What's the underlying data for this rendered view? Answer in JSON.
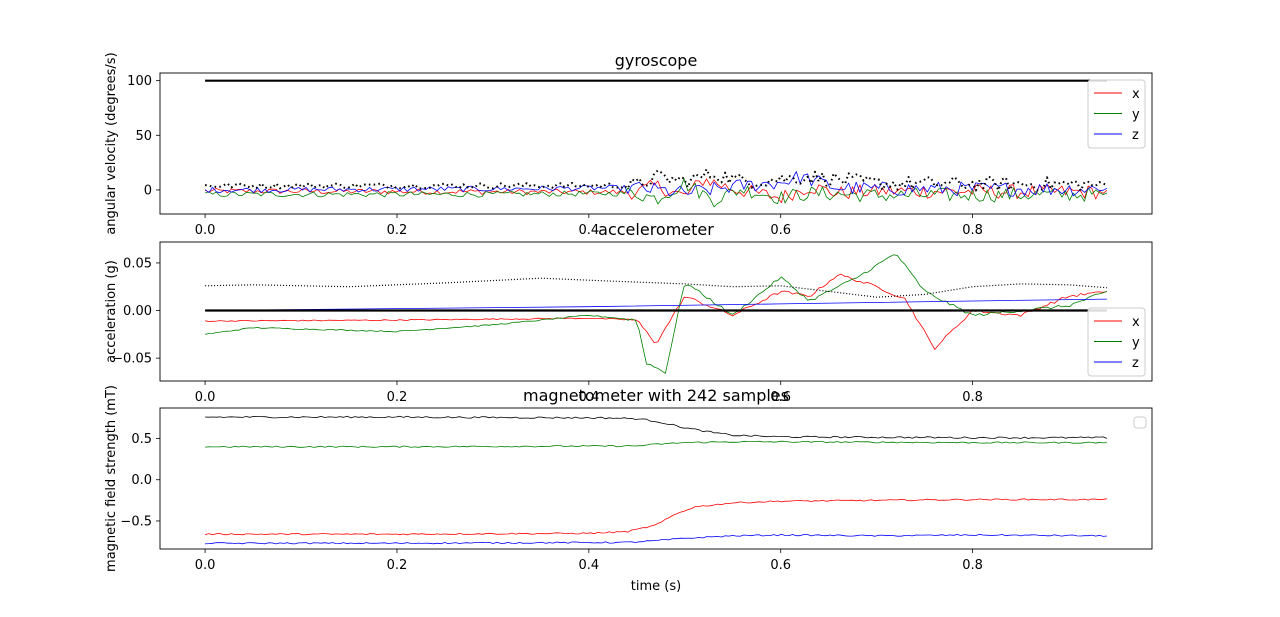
{
  "chart_data": [
    {
      "type": "line",
      "title": "gyroscope",
      "xlabel": "",
      "ylabel": "angular velocity (degrees/s)",
      "xlim": [
        -0.047,
        0.987
      ],
      "ylim": [
        -22,
        107
      ],
      "xticks": [
        0.0,
        0.2,
        0.4,
        0.6,
        0.8
      ],
      "xtick_labels": [
        "0.0",
        "0.2",
        "0.4",
        "0.6",
        "0.8"
      ],
      "yticks": [
        0,
        50,
        100
      ],
      "ytick_labels": [
        "0",
        "50",
        "100"
      ],
      "legend": [
        "x",
        "y",
        "z"
      ],
      "legend_position": "upper right",
      "series": [
        {
          "name": "x",
          "color": "#ff0000",
          "noisy": true,
          "x": [
            0,
            0.45,
            0.47,
            0.5,
            0.52,
            0.55,
            0.6,
            0.63,
            0.66,
            0.7,
            0.94
          ],
          "values": [
            -1,
            -2,
            4,
            -6,
            10,
            1,
            -7,
            3,
            -3,
            -1,
            -2
          ]
        },
        {
          "name": "y",
          "color": "#008000",
          "noisy": true,
          "x": [
            0,
            0.3,
            0.45,
            0.47,
            0.5,
            0.53,
            0.56,
            0.6,
            0.63,
            0.7,
            0.94
          ],
          "values": [
            -4,
            -4,
            -3,
            -8,
            6,
            -9,
            1,
            -7,
            -3,
            -5,
            -4
          ]
        },
        {
          "name": "z",
          "color": "#0000ff",
          "noisy": true,
          "x": [
            0,
            0.3,
            0.45,
            0.5,
            0.55,
            0.6,
            0.62,
            0.66,
            0.7,
            0.94
          ],
          "values": [
            0,
            1,
            2,
            -3,
            3,
            7,
            12,
            2,
            1,
            1
          ]
        },
        {
          "name": "",
          "color": "#000000",
          "style": "dotted",
          "noisy": true,
          "x": [
            0,
            0.3,
            0.45,
            0.47,
            0.5,
            0.53,
            0.56,
            0.6,
            0.63,
            0.7,
            0.94
          ],
          "values": [
            4,
            4,
            4,
            12,
            8,
            15,
            8,
            10,
            12,
            6,
            5
          ]
        },
        {
          "name": "",
          "color": "#000000",
          "style": "thick",
          "x": [
            0,
            0.94
          ],
          "values": [
            100,
            100
          ]
        }
      ]
    },
    {
      "type": "line",
      "title": "accelerometer",
      "xlabel": "",
      "ylabel": "acceleration (g)",
      "xlim": [
        -0.047,
        0.987
      ],
      "ylim": [
        -0.074,
        0.072
      ],
      "xticks": [
        0.0,
        0.2,
        0.4,
        0.6,
        0.8
      ],
      "xtick_labels": [
        "0.0",
        "0.2",
        "0.4",
        "0.6",
        "0.8"
      ],
      "yticks": [
        -0.05,
        0.0,
        0.05
      ],
      "ytick_labels": [
        "−0.05",
        "0.00",
        "0.05"
      ],
      "legend": [
        "x",
        "y",
        "z"
      ],
      "legend_position": "lower right",
      "series": [
        {
          "name": "x",
          "color": "#ff0000",
          "noisy": true,
          "x": [
            0,
            0.2,
            0.4,
            0.45,
            0.47,
            0.5,
            0.55,
            0.6,
            0.63,
            0.66,
            0.7,
            0.73,
            0.76,
            0.8,
            0.85,
            0.9,
            0.94
          ],
          "values": [
            -0.011,
            -0.01,
            -0.008,
            -0.01,
            -0.035,
            0.015,
            -0.005,
            0.02,
            0.015,
            0.038,
            0.025,
            0.012,
            -0.04,
            0.0,
            -0.005,
            0.015,
            0.02
          ]
        },
        {
          "name": "y",
          "color": "#008000",
          "noisy": true,
          "x": [
            0,
            0.05,
            0.2,
            0.3,
            0.4,
            0.45,
            0.46,
            0.48,
            0.5,
            0.55,
            0.6,
            0.63,
            0.68,
            0.72,
            0.75,
            0.8,
            0.85,
            0.9,
            0.94
          ],
          "values": [
            -0.025,
            -0.018,
            -0.022,
            -0.015,
            -0.005,
            -0.01,
            -0.055,
            -0.065,
            0.03,
            -0.005,
            0.035,
            0.01,
            0.035,
            0.06,
            0.02,
            -0.005,
            0.0,
            0.005,
            0.02
          ]
        },
        {
          "name": "z",
          "color": "#0000ff",
          "x": [
            0,
            0.2,
            0.4,
            0.6,
            0.8,
            0.94
          ],
          "values": [
            0.0,
            0.002,
            0.004,
            0.007,
            0.01,
            0.012
          ]
        },
        {
          "name": "",
          "color": "#000000",
          "style": "dotted-fine",
          "x": [
            0,
            0.05,
            0.15,
            0.25,
            0.35,
            0.42,
            0.5,
            0.55,
            0.6,
            0.66,
            0.7,
            0.75,
            0.8,
            0.85,
            0.9,
            0.94
          ],
          "values": [
            0.026,
            0.027,
            0.025,
            0.029,
            0.034,
            0.031,
            0.028,
            0.025,
            0.026,
            0.019,
            0.014,
            0.017,
            0.025,
            0.028,
            0.027,
            0.024
          ]
        },
        {
          "name": "",
          "color": "#000000",
          "style": "thick",
          "x": [
            0,
            0.94
          ],
          "values": [
            0.0,
            0.0
          ]
        }
      ]
    },
    {
      "type": "line",
      "title": "magnetometer with 242 samples",
      "xlabel": "time (s)",
      "ylabel": "magnetic field strength (mT)",
      "xlim": [
        -0.047,
        0.987
      ],
      "ylim": [
        -0.84,
        0.87
      ],
      "xticks": [
        0.0,
        0.2,
        0.4,
        0.6,
        0.8
      ],
      "xtick_labels": [
        "0.0",
        "0.2",
        "0.4",
        "0.6",
        "0.8"
      ],
      "yticks": [
        -0.5,
        0.0,
        0.5
      ],
      "ytick_labels": [
        "−0.5",
        "0.0",
        "0.5"
      ],
      "legend": [],
      "legend_position": "upper right",
      "series": [
        {
          "name": "",
          "color": "#000000",
          "noisy": true,
          "noise": 0.006,
          "x": [
            0,
            0.2,
            0.42,
            0.45,
            0.47,
            0.5,
            0.53,
            0.55,
            0.6,
            0.8,
            0.94
          ],
          "values": [
            0.76,
            0.76,
            0.75,
            0.74,
            0.71,
            0.63,
            0.57,
            0.54,
            0.52,
            0.51,
            0.51
          ]
        },
        {
          "name": "",
          "color": "#008000",
          "noisy": true,
          "noise": 0.005,
          "x": [
            0,
            0.2,
            0.45,
            0.47,
            0.5,
            0.55,
            0.6,
            0.8,
            0.94
          ],
          "values": [
            0.4,
            0.4,
            0.41,
            0.43,
            0.45,
            0.46,
            0.46,
            0.45,
            0.45
          ]
        },
        {
          "name": "",
          "color": "#ff0000",
          "noisy": true,
          "noise": 0.005,
          "x": [
            0,
            0.2,
            0.4,
            0.44,
            0.47,
            0.49,
            0.51,
            0.55,
            0.6,
            0.7,
            0.8,
            0.94
          ],
          "values": [
            -0.66,
            -0.66,
            -0.65,
            -0.63,
            -0.55,
            -0.42,
            -0.33,
            -0.28,
            -0.26,
            -0.25,
            -0.24,
            -0.24
          ]
        },
        {
          "name": "",
          "color": "#0000ff",
          "noisy": true,
          "noise": 0.005,
          "x": [
            0,
            0.2,
            0.44,
            0.47,
            0.5,
            0.55,
            0.6,
            0.7,
            0.8,
            0.94
          ],
          "values": [
            -0.77,
            -0.77,
            -0.76,
            -0.74,
            -0.71,
            -0.68,
            -0.67,
            -0.68,
            -0.67,
            -0.68
          ]
        }
      ]
    }
  ]
}
